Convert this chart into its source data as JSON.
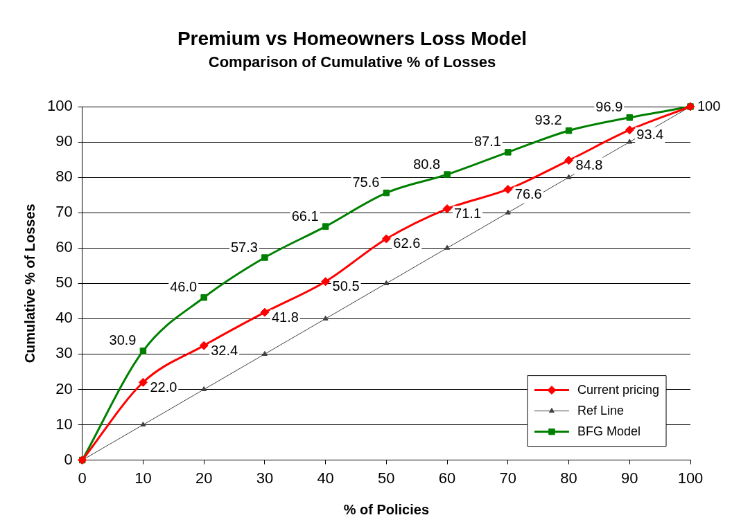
{
  "chart_data": {
    "type": "line",
    "title": "Premium vs Homeowners Loss Model",
    "subtitle": "Comparison of Cumulative % of Losses",
    "xlabel": "% of Policies",
    "ylabel": "Cumulative % of Losses",
    "x": [
      0,
      10,
      20,
      30,
      40,
      50,
      60,
      70,
      80,
      90,
      100
    ],
    "series": [
      {
        "name": "Current pricing",
        "color": "#ff0000",
        "marker": "diamond",
        "values": [
          0,
          22.0,
          32.4,
          41.8,
          50.5,
          62.6,
          71.1,
          76.6,
          84.8,
          93.4,
          100
        ],
        "value_labels": [
          null,
          "22.0",
          "32.4",
          "41.8",
          "50.5",
          "62.6",
          "71.1",
          "76.6",
          "84.8",
          "93.4",
          null
        ]
      },
      {
        "name": "Ref Line",
        "color": "#404040",
        "marker": "triangle",
        "values": [
          0,
          10,
          20,
          30,
          40,
          50,
          60,
          70,
          80,
          90,
          100
        ]
      },
      {
        "name": "BFG Model",
        "color": "#008000",
        "marker": "square",
        "values": [
          0,
          30.9,
          46.0,
          57.3,
          66.1,
          75.6,
          80.8,
          87.1,
          93.2,
          96.9,
          100
        ],
        "value_labels": [
          null,
          "30.9",
          "46.0",
          "57.3",
          "66.1",
          "75.6",
          "80.8",
          "87.1",
          "93.2",
          "96.9",
          "100"
        ]
      }
    ],
    "xlim": [
      0,
      100
    ],
    "xticks": [
      0,
      10,
      20,
      30,
      40,
      50,
      60,
      70,
      80,
      90,
      100
    ],
    "ylim": [
      0,
      100
    ],
    "yticks": [
      0,
      10,
      20,
      30,
      40,
      50,
      60,
      70,
      80,
      90,
      100
    ],
    "grid": "y",
    "legend": "bottom right",
    "line_style": "solid"
  }
}
